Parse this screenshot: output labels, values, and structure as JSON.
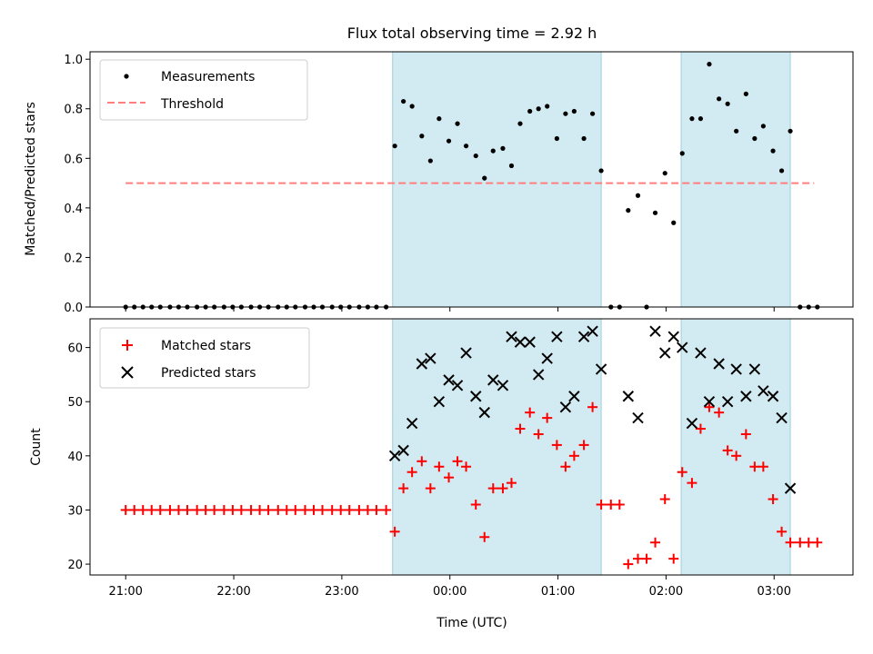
{
  "chart_data": {
    "title": "Flux total observing time = 2.92 h",
    "xlabel": "Time (UTC)",
    "x_unit": "hours UTC (hour of day, values past 24 are next day)",
    "xlim": [
      20.67,
      27.73
    ],
    "x_ticks": [
      {
        "value": 21,
        "label": "21:00"
      },
      {
        "value": 22,
        "label": "22:00"
      },
      {
        "value": 23,
        "label": "23:00"
      },
      {
        "value": 24,
        "label": "00:00"
      },
      {
        "value": 25,
        "label": "01:00"
      },
      {
        "value": 26,
        "label": "02:00"
      },
      {
        "value": 27,
        "label": "03:00"
      }
    ],
    "shaded_intervals": [
      [
        23.47,
        25.4
      ],
      [
        26.14,
        27.15
      ]
    ],
    "shade_color": "#add8e6",
    "panels": [
      {
        "type": "scatter",
        "ylabel": "Matched/Predicted stars",
        "ylim": [
          0,
          1.03
        ],
        "y_ticks": [
          {
            "value": 0,
            "label": "0.0"
          },
          {
            "value": 0.2,
            "label": "0.2"
          },
          {
            "value": 0.4,
            "label": "0.4"
          },
          {
            "value": 0.6,
            "label": "0.6"
          },
          {
            "value": 0.8,
            "label": "0.8"
          },
          {
            "value": 1.0,
            "label": "1.0"
          }
        ],
        "legend_position": "upper-left",
        "legend": [
          {
            "label": "Measurements",
            "marker": "dot",
            "color": "#000000"
          },
          {
            "label": "Threshold",
            "marker": "dashed-line",
            "color": "#ff7f7f"
          }
        ],
        "threshold": {
          "x": [
            21.0,
            27.37
          ],
          "y": 0.5,
          "color": "#ff7f7f"
        },
        "measurements": [
          [
            21.0,
            0
          ],
          [
            21.08,
            0
          ],
          [
            21.16,
            0
          ],
          [
            21.24,
            0
          ],
          [
            21.32,
            0
          ],
          [
            21.41,
            0
          ],
          [
            21.49,
            0
          ],
          [
            21.57,
            0
          ],
          [
            21.66,
            0
          ],
          [
            21.74,
            0
          ],
          [
            21.82,
            0
          ],
          [
            21.91,
            0
          ],
          [
            21.99,
            0
          ],
          [
            22.07,
            0
          ],
          [
            22.16,
            0
          ],
          [
            22.24,
            0
          ],
          [
            22.32,
            0
          ],
          [
            22.41,
            0
          ],
          [
            22.49,
            0
          ],
          [
            22.57,
            0
          ],
          [
            22.66,
            0
          ],
          [
            22.74,
            0
          ],
          [
            22.82,
            0
          ],
          [
            22.91,
            0
          ],
          [
            22.99,
            0
          ],
          [
            23.07,
            0
          ],
          [
            23.16,
            0
          ],
          [
            23.24,
            0
          ],
          [
            23.32,
            0
          ],
          [
            23.41,
            0
          ],
          [
            23.49,
            0.65
          ],
          [
            23.57,
            0.83
          ],
          [
            23.65,
            0.81
          ],
          [
            23.74,
            0.69
          ],
          [
            23.82,
            0.59
          ],
          [
            23.9,
            0.76
          ],
          [
            23.99,
            0.67
          ],
          [
            24.07,
            0.74
          ],
          [
            24.15,
            0.65
          ],
          [
            24.24,
            0.61
          ],
          [
            24.32,
            0.52
          ],
          [
            24.4,
            0.63
          ],
          [
            24.49,
            0.64
          ],
          [
            24.57,
            0.57
          ],
          [
            24.65,
            0.74
          ],
          [
            24.74,
            0.79
          ],
          [
            24.82,
            0.8
          ],
          [
            24.9,
            0.81
          ],
          [
            24.99,
            0.68
          ],
          [
            25.07,
            0.78
          ],
          [
            25.15,
            0.79
          ],
          [
            25.24,
            0.68
          ],
          [
            25.32,
            0.78
          ],
          [
            25.4,
            0.55
          ],
          [
            25.49,
            0
          ],
          [
            25.57,
            0
          ],
          [
            25.65,
            0.39
          ],
          [
            25.74,
            0.45
          ],
          [
            25.82,
            0
          ],
          [
            25.9,
            0.38
          ],
          [
            25.99,
            0.54
          ],
          [
            26.07,
            0.34
          ],
          [
            26.15,
            0.62
          ],
          [
            26.24,
            0.76
          ],
          [
            26.32,
            0.76
          ],
          [
            26.4,
            0.98
          ],
          [
            26.49,
            0.84
          ],
          [
            26.57,
            0.82
          ],
          [
            26.65,
            0.71
          ],
          [
            26.74,
            0.86
          ],
          [
            26.82,
            0.68
          ],
          [
            26.9,
            0.73
          ],
          [
            26.99,
            0.63
          ],
          [
            27.07,
            0.55
          ],
          [
            27.15,
            0.71
          ],
          [
            27.24,
            0
          ],
          [
            27.32,
            0
          ],
          [
            27.4,
            0
          ]
        ]
      },
      {
        "type": "scatter",
        "ylabel": "Count",
        "ylim": [
          18,
          65.3
        ],
        "y_ticks": [
          {
            "value": 20,
            "label": "20"
          },
          {
            "value": 30,
            "label": "30"
          },
          {
            "value": 40,
            "label": "40"
          },
          {
            "value": 50,
            "label": "50"
          },
          {
            "value": 60,
            "label": "60"
          }
        ],
        "legend_position": "upper-left",
        "legend": [
          {
            "label": "Matched stars",
            "marker": "plus",
            "color": "#ff0000"
          },
          {
            "label": "Predicted stars",
            "marker": "x",
            "color": "#000000"
          }
        ],
        "matched": [
          [
            21.0,
            30
          ],
          [
            21.08,
            30
          ],
          [
            21.16,
            30
          ],
          [
            21.24,
            30
          ],
          [
            21.32,
            30
          ],
          [
            21.41,
            30
          ],
          [
            21.49,
            30
          ],
          [
            21.57,
            30
          ],
          [
            21.66,
            30
          ],
          [
            21.74,
            30
          ],
          [
            21.82,
            30
          ],
          [
            21.91,
            30
          ],
          [
            21.99,
            30
          ],
          [
            22.07,
            30
          ],
          [
            22.16,
            30
          ],
          [
            22.24,
            30
          ],
          [
            22.32,
            30
          ],
          [
            22.41,
            30
          ],
          [
            22.49,
            30
          ],
          [
            22.57,
            30
          ],
          [
            22.66,
            30
          ],
          [
            22.74,
            30
          ],
          [
            22.82,
            30
          ],
          [
            22.91,
            30
          ],
          [
            22.99,
            30
          ],
          [
            23.07,
            30
          ],
          [
            23.16,
            30
          ],
          [
            23.24,
            30
          ],
          [
            23.32,
            30
          ],
          [
            23.41,
            30
          ],
          [
            23.49,
            26
          ],
          [
            23.57,
            34
          ],
          [
            23.65,
            37
          ],
          [
            23.74,
            39
          ],
          [
            23.82,
            34
          ],
          [
            23.9,
            38
          ],
          [
            23.99,
            36
          ],
          [
            24.07,
            39
          ],
          [
            24.15,
            38
          ],
          [
            24.24,
            31
          ],
          [
            24.32,
            25
          ],
          [
            24.4,
            34
          ],
          [
            24.49,
            34
          ],
          [
            24.57,
            35
          ],
          [
            24.65,
            45
          ],
          [
            24.74,
            48
          ],
          [
            24.82,
            44
          ],
          [
            24.9,
            47
          ],
          [
            24.99,
            42
          ],
          [
            25.07,
            38
          ],
          [
            25.15,
            40
          ],
          [
            25.24,
            42
          ],
          [
            25.32,
            49
          ],
          [
            25.4,
            31
          ],
          [
            25.49,
            31
          ],
          [
            25.57,
            31
          ],
          [
            25.65,
            20
          ],
          [
            25.74,
            21
          ],
          [
            25.82,
            21
          ],
          [
            25.9,
            24
          ],
          [
            25.99,
            32
          ],
          [
            26.07,
            21
          ],
          [
            26.15,
            37
          ],
          [
            26.24,
            35
          ],
          [
            26.32,
            45
          ],
          [
            26.4,
            49
          ],
          [
            26.49,
            48
          ],
          [
            26.57,
            41
          ],
          [
            26.65,
            40
          ],
          [
            26.74,
            44
          ],
          [
            26.82,
            38
          ],
          [
            26.9,
            38
          ],
          [
            26.99,
            32
          ],
          [
            27.07,
            26
          ],
          [
            27.15,
            24
          ],
          [
            27.24,
            24
          ],
          [
            27.32,
            24
          ],
          [
            27.4,
            24
          ]
        ],
        "predicted": [
          [
            23.49,
            40
          ],
          [
            23.57,
            41
          ],
          [
            23.65,
            46
          ],
          [
            23.74,
            57
          ],
          [
            23.82,
            58
          ],
          [
            23.9,
            50
          ],
          [
            23.99,
            54
          ],
          [
            24.07,
            53
          ],
          [
            24.15,
            59
          ],
          [
            24.24,
            51
          ],
          [
            24.32,
            48
          ],
          [
            24.4,
            54
          ],
          [
            24.49,
            53
          ],
          [
            24.57,
            62
          ],
          [
            24.65,
            61
          ],
          [
            24.74,
            61
          ],
          [
            24.82,
            55
          ],
          [
            24.9,
            58
          ],
          [
            24.99,
            62
          ],
          [
            25.07,
            49
          ],
          [
            25.15,
            51
          ],
          [
            25.24,
            62
          ],
          [
            25.32,
            63
          ],
          [
            25.4,
            56
          ],
          [
            25.65,
            51
          ],
          [
            25.74,
            47
          ],
          [
            25.9,
            63
          ],
          [
            25.99,
            59
          ],
          [
            26.07,
            62
          ],
          [
            26.15,
            60
          ],
          [
            26.24,
            46
          ],
          [
            26.32,
            59
          ],
          [
            26.4,
            50
          ],
          [
            26.49,
            57
          ],
          [
            26.57,
            50
          ],
          [
            26.65,
            56
          ],
          [
            26.74,
            51
          ],
          [
            26.82,
            56
          ],
          [
            26.9,
            52
          ],
          [
            26.99,
            51
          ],
          [
            27.07,
            47
          ],
          [
            27.15,
            34
          ]
        ]
      }
    ]
  }
}
